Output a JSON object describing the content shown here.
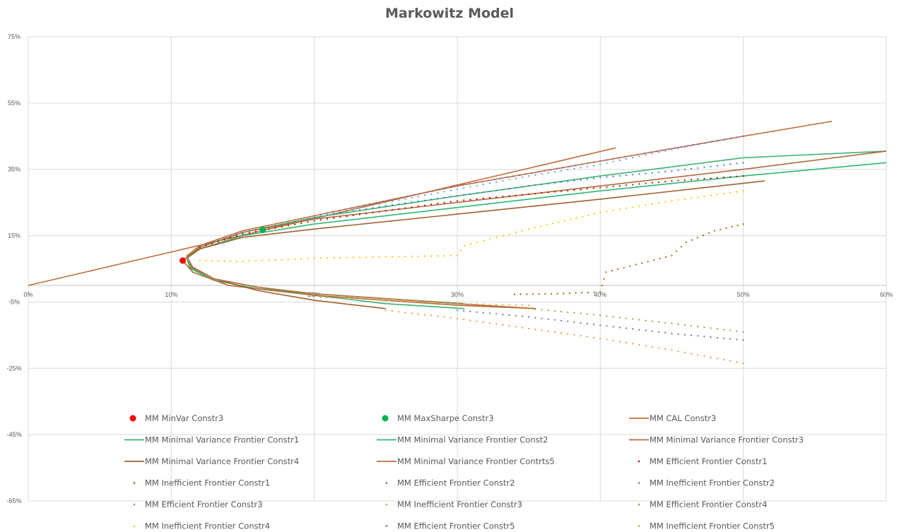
{
  "chart_data": {
    "type": "scatter",
    "title": "Markowitz Model",
    "xlabel": "",
    "ylabel": "",
    "xlim": [
      0,
      0.6
    ],
    "ylim": [
      -0.65,
      0.75
    ],
    "x_ticks": [
      "0%",
      "10%",
      "20%",
      "30%",
      "40%",
      "50%",
      "60%"
    ],
    "y_ticks": [
      "75%",
      "55%",
      "35%",
      "15%",
      "-5%",
      "-25%",
      "-45%",
      "-65%"
    ],
    "grid": true,
    "legend_position": "bottom",
    "series": [
      {
        "name": "MM MinVar Constr3",
        "kind": "marker",
        "color": "#ff0000",
        "points": [
          [
            0.108,
            0.075
          ]
        ]
      },
      {
        "name": "MM MaxSharpe Constr3",
        "kind": "marker",
        "color": "#00b050",
        "points": [
          [
            0.164,
            0.168
          ]
        ]
      },
      {
        "name": "MM CAL Constr3",
        "kind": "line",
        "color": "#c0703a",
        "points": [
          [
            0,
            0
          ],
          [
            0.411,
            0.415
          ]
        ]
      },
      {
        "name": "MM Minimal Variance Frontier Constr1",
        "kind": "line",
        "color": "#3cb371",
        "points": [
          [
            0.6,
            0.405
          ],
          [
            0.5,
            0.385
          ],
          [
            0.4,
            0.33
          ],
          [
            0.3,
            0.27
          ],
          [
            0.2,
            0.205
          ],
          [
            0.15,
            0.16
          ],
          [
            0.12,
            0.115
          ],
          [
            0.111,
            0.085
          ],
          [
            0.113,
            0.055
          ],
          [
            0.13,
            0.02
          ],
          [
            0.16,
            -0.005
          ],
          [
            0.2,
            -0.03
          ],
          [
            0.25,
            -0.055
          ],
          [
            0.305,
            -0.07
          ]
        ]
      },
      {
        "name": "MM Minimal Variance Frontier Const2",
        "kind": "line",
        "color": "#2eb872",
        "points": [
          [
            0.6,
            0.37
          ],
          [
            0.5,
            0.33
          ],
          [
            0.4,
            0.285
          ],
          [
            0.3,
            0.235
          ],
          [
            0.2,
            0.185
          ],
          [
            0.15,
            0.15
          ],
          [
            0.12,
            0.11
          ],
          [
            0.111,
            0.082
          ],
          [
            0.113,
            0.052
          ],
          [
            0.13,
            0.015
          ],
          [
            0.16,
            -0.01
          ],
          [
            0.2,
            -0.025
          ],
          [
            0.25,
            -0.04
          ],
          [
            0.305,
            -0.055
          ]
        ]
      },
      {
        "name": "MM Minimal Variance Frontier Constr3",
        "kind": "line",
        "color": "#b06b3a",
        "points": [
          [
            0.6,
            0.405
          ],
          [
            0.5,
            0.35
          ],
          [
            0.4,
            0.3
          ],
          [
            0.3,
            0.25
          ],
          [
            0.2,
            0.2
          ],
          [
            0.15,
            0.16
          ],
          [
            0.12,
            0.115
          ],
          [
            0.108,
            0.075
          ],
          [
            0.115,
            0.04
          ],
          [
            0.14,
            0.0
          ],
          [
            0.2,
            -0.03
          ],
          [
            0.3,
            -0.06
          ],
          [
            0.355,
            -0.07
          ]
        ]
      },
      {
        "name": "MM Minimal Variance Frontier Constr4",
        "kind": "line",
        "color": "#a0602e",
        "points": [
          [
            0.515,
            0.315
          ],
          [
            0.4,
            0.26
          ],
          [
            0.3,
            0.215
          ],
          [
            0.2,
            0.17
          ],
          [
            0.15,
            0.145
          ],
          [
            0.12,
            0.11
          ],
          [
            0.111,
            0.085
          ],
          [
            0.115,
            0.055
          ],
          [
            0.13,
            0.02
          ],
          [
            0.16,
            -0.015
          ],
          [
            0.2,
            -0.045
          ],
          [
            0.25,
            -0.07
          ]
        ]
      },
      {
        "name": "MM Minimal Variance Frontier Contrts5",
        "kind": "line",
        "color": "#c0703a",
        "points": [
          [
            0.562,
            0.495
          ],
          [
            0.5,
            0.45
          ],
          [
            0.4,
            0.375
          ],
          [
            0.3,
            0.3
          ],
          [
            0.2,
            0.21
          ],
          [
            0.15,
            0.165
          ],
          [
            0.12,
            0.12
          ],
          [
            0.111,
            0.09
          ],
          [
            0.114,
            0.055
          ],
          [
            0.13,
            0.02
          ],
          [
            0.16,
            -0.005
          ],
          [
            0.2,
            -0.025
          ],
          [
            0.25,
            -0.04
          ],
          [
            0.3,
            -0.055
          ],
          [
            0.355,
            -0.07
          ]
        ]
      },
      {
        "name": "MM Efficient Frontier Constr1",
        "kind": "dots",
        "color": "#c00000",
        "points": [
          [
            0.12,
            0.115
          ],
          [
            0.15,
            0.155
          ],
          [
            0.2,
            0.195
          ],
          [
            0.25,
            0.225
          ],
          [
            0.3,
            0.255
          ],
          [
            0.35,
            0.275
          ],
          [
            0.4,
            0.295
          ],
          [
            0.45,
            0.315
          ],
          [
            0.5,
            0.33
          ]
        ]
      },
      {
        "name": "MM Inefficient Frontier Constr1",
        "kind": "dots",
        "color": "#996600",
        "points": [
          [
            0.34,
            -0.027
          ],
          [
            0.37,
            -0.025
          ],
          [
            0.4,
            -0.02
          ],
          [
            0.404,
            0.04
          ],
          [
            0.45,
            0.09
          ],
          [
            0.46,
            0.13
          ],
          [
            0.48,
            0.165
          ],
          [
            0.5,
            0.185
          ]
        ]
      },
      {
        "name": "MM Efficient Frontier Constr2",
        "kind": "dots",
        "color": "#4472c4",
        "points": [
          [
            0.12,
            0.118
          ],
          [
            0.15,
            0.16
          ],
          [
            0.2,
            0.205
          ],
          [
            0.25,
            0.24
          ],
          [
            0.3,
            0.27
          ],
          [
            0.35,
            0.3
          ],
          [
            0.4,
            0.325
          ],
          [
            0.45,
            0.345
          ],
          [
            0.5,
            0.37
          ]
        ]
      },
      {
        "name": "MM Inefficient Frontier Constr2",
        "kind": "dots",
        "color": "#7c6a9e",
        "points": [
          [
            0.3,
            -0.075
          ],
          [
            0.35,
            -0.095
          ],
          [
            0.4,
            -0.12
          ],
          [
            0.45,
            -0.145
          ],
          [
            0.5,
            -0.165
          ]
        ]
      },
      {
        "name": "MM Efficient Frontier Constr3",
        "kind": "dots",
        "color": "#5b9bd5",
        "points": [
          [
            0.2,
            0.205
          ],
          [
            0.25,
            0.25
          ],
          [
            0.3,
            0.29
          ],
          [
            0.35,
            0.33
          ],
          [
            0.4,
            0.365
          ],
          [
            0.45,
            0.41
          ],
          [
            0.5,
            0.45
          ]
        ]
      },
      {
        "name": "MM Inefficient Frontier Constr3",
        "kind": "dots",
        "color": "#f4913b",
        "points": [
          [
            0.25,
            -0.075
          ],
          [
            0.3,
            -0.1
          ],
          [
            0.35,
            -0.13
          ],
          [
            0.4,
            -0.16
          ],
          [
            0.45,
            -0.195
          ],
          [
            0.5,
            -0.235
          ]
        ]
      },
      {
        "name": "MM Efficient Frontier Constr4",
        "kind": "dots",
        "color": "#70ad47",
        "points": [
          [
            0.35,
            -0.07
          ],
          [
            0.4,
            -0.09
          ],
          [
            0.45,
            -0.115
          ],
          [
            0.5,
            -0.14
          ]
        ]
      },
      {
        "name": "MM Inefficient Frontier Constr4",
        "kind": "dots",
        "color": "#ffc000",
        "points": [
          [
            0.12,
            0.075
          ],
          [
            0.15,
            0.072
          ],
          [
            0.2,
            0.082
          ],
          [
            0.3,
            0.09
          ],
          [
            0.305,
            0.12
          ],
          [
            0.35,
            0.17
          ],
          [
            0.4,
            0.22
          ],
          [
            0.45,
            0.255
          ],
          [
            0.5,
            0.285
          ]
        ]
      },
      {
        "name": "MM Efficient Frontier Constr5",
        "kind": "dots",
        "color": "#8064a2",
        "points": [
          [
            0.2,
            0.21
          ],
          [
            0.3,
            0.3
          ],
          [
            0.4,
            0.375
          ],
          [
            0.5,
            0.45
          ]
        ]
      },
      {
        "name": "MM Inefficient Frontier Constr5",
        "kind": "dots",
        "color": "#e8a33d",
        "points": [
          [
            0.2,
            -0.035
          ],
          [
            0.3,
            -0.055
          ],
          [
            0.35,
            -0.06
          ]
        ]
      }
    ],
    "legend_order": [
      "MM MinVar Constr3",
      "MM MaxSharpe Constr3",
      "MM CAL Constr3",
      "MM Minimal Variance Frontier Constr1",
      "MM Minimal Variance Frontier Const2",
      "MM Minimal Variance Frontier Constr3",
      "MM Minimal Variance Frontier Constr4",
      "MM Minimal Variance Frontier Contrts5",
      "MM Efficient Frontier Constr1",
      "MM Inefficient Frontier Constr1",
      "MM Efficient Frontier Constr2",
      "MM Inefficient Frontier Constr2",
      "MM Efficient Frontier Constr3",
      "MM Inefficient Frontier Constr3",
      "MM Efficient Frontier Constr4",
      "MM Inefficient Frontier Constr4",
      "MM Efficient Frontier Constr5",
      "MM Inefficient Frontier Constr5"
    ]
  }
}
